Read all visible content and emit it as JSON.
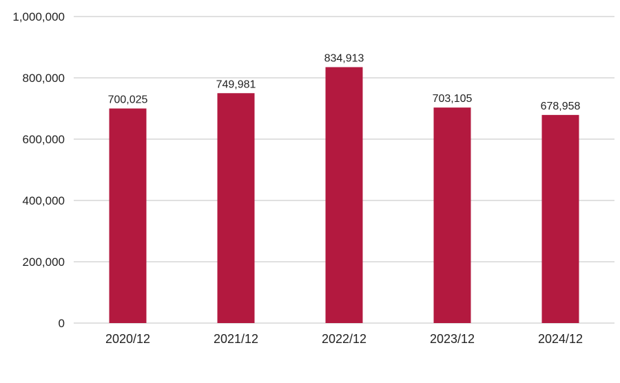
{
  "chart_data": {
    "type": "bar",
    "categories": [
      "2020/12",
      "2021/12",
      "2022/12",
      "2023/12",
      "2024/12"
    ],
    "values": [
      700025,
      749981,
      834913,
      703105,
      678958
    ],
    "data_labels": [
      "700,025",
      "749,981",
      "834,913",
      "703,105",
      "678,958"
    ],
    "ylim": [
      0,
      1000000
    ],
    "yticks": [
      0,
      200000,
      400000,
      600000,
      800000,
      1000000
    ],
    "ytick_labels": [
      "0",
      "200,000",
      "400,000",
      "600,000",
      "800,000",
      "1,000,000"
    ],
    "grid": true,
    "legend": "none",
    "bar_color": "#b3193f"
  }
}
